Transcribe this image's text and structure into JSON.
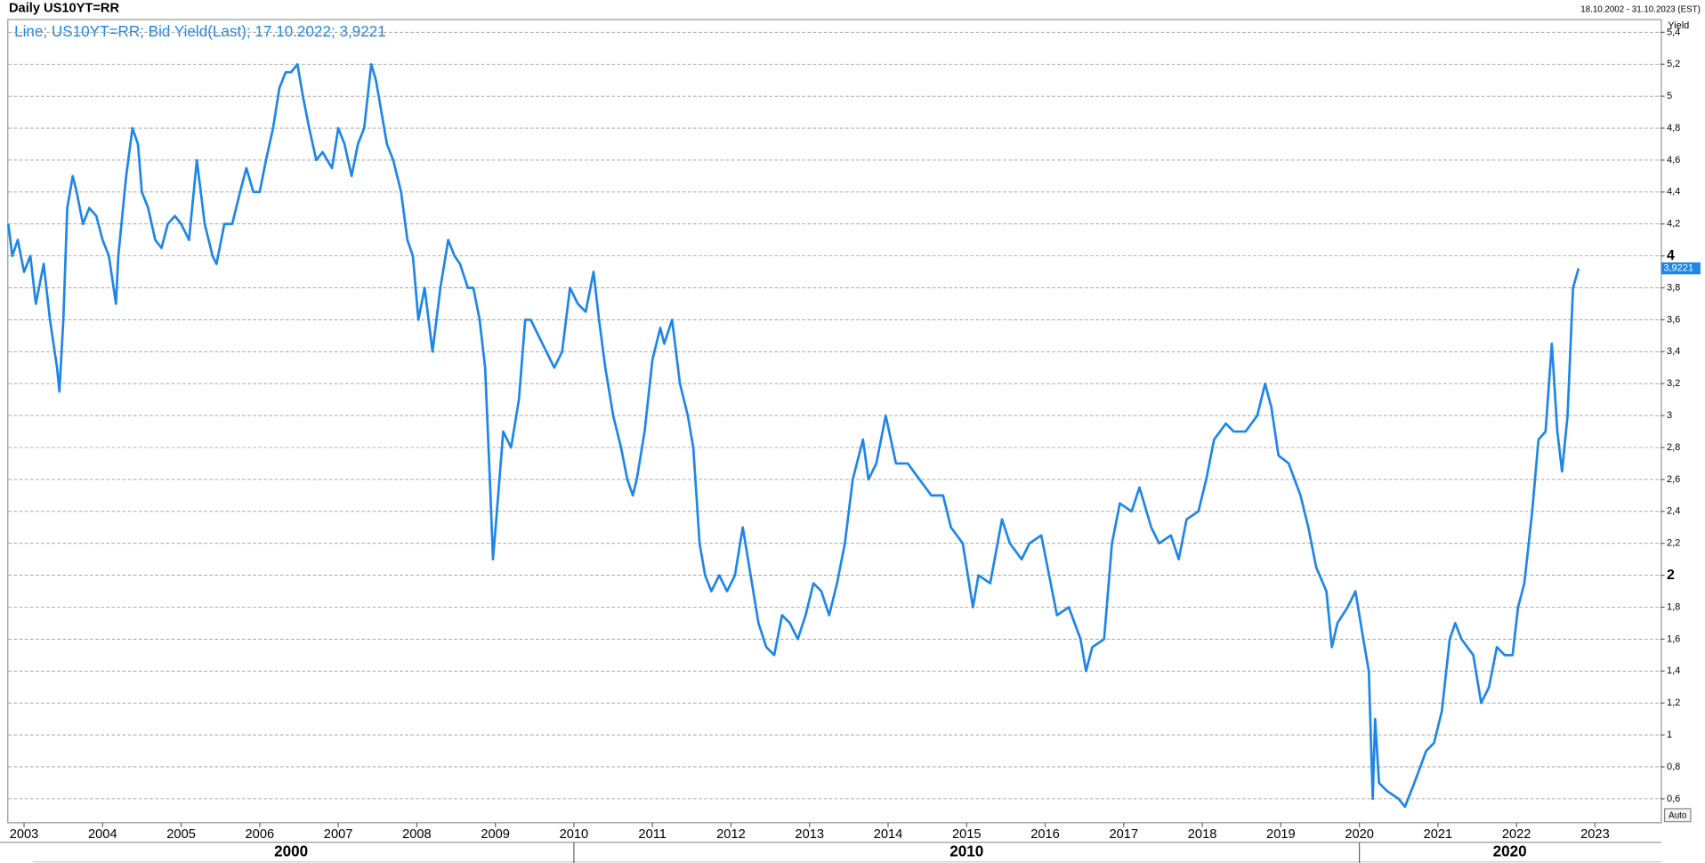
{
  "chart_data": {
    "type": "line",
    "title": "Daily US10YT=RR",
    "date_range": "18.10.2002 - 31.10.2023 (EST)",
    "y_label": "Yield",
    "auto_button": "Auto",
    "x": [
      2002.8,
      2002.85,
      2002.92,
      2003.0,
      2003.08,
      2003.15,
      2003.25,
      2003.33,
      2003.42,
      2003.45,
      2003.5,
      2003.55,
      2003.62,
      2003.67,
      2003.75,
      2003.83,
      2003.92,
      2004.0,
      2004.08,
      2004.17,
      2004.2,
      2004.3,
      2004.38,
      2004.45,
      2004.5,
      2004.58,
      2004.67,
      2004.75,
      2004.83,
      2004.92,
      2005.0,
      2005.1,
      2005.2,
      2005.3,
      2005.4,
      2005.45,
      2005.55,
      2005.65,
      2005.75,
      2005.83,
      2005.92,
      2006.0,
      2006.08,
      2006.17,
      2006.25,
      2006.33,
      2006.4,
      2006.48,
      2006.55,
      2006.63,
      2006.72,
      2006.8,
      2006.92,
      2007.0,
      2007.08,
      2007.17,
      2007.25,
      2007.33,
      2007.42,
      2007.48,
      2007.55,
      2007.62,
      2007.7,
      2007.8,
      2007.88,
      2007.95,
      2008.02,
      2008.1,
      2008.2,
      2008.3,
      2008.4,
      2008.48,
      2008.55,
      2008.65,
      2008.72,
      2008.8,
      2008.87,
      2008.93,
      2008.97,
      2009.02,
      2009.1,
      2009.2,
      2009.3,
      2009.38,
      2009.45,
      2009.55,
      2009.65,
      2009.75,
      2009.85,
      2009.95,
      2010.05,
      2010.15,
      2010.25,
      2010.32,
      2010.4,
      2010.5,
      2010.6,
      2010.68,
      2010.75,
      2010.8,
      2010.9,
      2011.0,
      2011.1,
      2011.15,
      2011.25,
      2011.35,
      2011.45,
      2011.52,
      2011.6,
      2011.67,
      2011.75,
      2011.85,
      2011.95,
      2012.05,
      2012.15,
      2012.25,
      2012.35,
      2012.45,
      2012.55,
      2012.65,
      2012.75,
      2012.85,
      2012.95,
      2013.05,
      2013.15,
      2013.25,
      2013.35,
      2013.45,
      2013.55,
      2013.68,
      2013.75,
      2013.85,
      2013.97,
      2014.1,
      2014.25,
      2014.4,
      2014.55,
      2014.7,
      2014.8,
      2014.95,
      2015.08,
      2015.15,
      2015.3,
      2015.45,
      2015.55,
      2015.7,
      2015.8,
      2015.95,
      2016.05,
      2016.15,
      2016.3,
      2016.45,
      2016.52,
      2016.6,
      2016.75,
      2016.85,
      2016.95,
      2017.1,
      2017.2,
      2017.35,
      2017.45,
      2017.6,
      2017.7,
      2017.8,
      2017.95,
      2018.05,
      2018.15,
      2018.3,
      2018.4,
      2018.55,
      2018.7,
      2018.8,
      2018.88,
      2018.97,
      2019.1,
      2019.25,
      2019.35,
      2019.45,
      2019.58,
      2019.65,
      2019.72,
      2019.85,
      2019.95,
      2020.05,
      2020.12,
      2020.17,
      2020.2,
      2020.25,
      2020.35,
      2020.5,
      2020.58,
      2020.7,
      2020.85,
      2020.95,
      2021.05,
      2021.15,
      2021.22,
      2021.3,
      2021.45,
      2021.55,
      2021.65,
      2021.75,
      2021.85,
      2021.95,
      2022.02,
      2022.1,
      2022.2,
      2022.28,
      2022.37,
      2022.45,
      2022.52,
      2022.58,
      2022.65,
      2022.72,
      2022.79
    ],
    "series": [
      {
        "name": "Line; US10YT=RR; Bid Yield(Last); 17.10.2022; 3,9221",
        "color": "#1e86e8",
        "values": [
          4.2,
          4.0,
          4.1,
          3.9,
          4.0,
          3.7,
          3.95,
          3.6,
          3.3,
          3.15,
          3.6,
          4.3,
          4.5,
          4.4,
          4.2,
          4.3,
          4.25,
          4.1,
          4.0,
          3.7,
          4.0,
          4.5,
          4.8,
          4.7,
          4.4,
          4.3,
          4.1,
          4.05,
          4.2,
          4.25,
          4.2,
          4.1,
          4.6,
          4.2,
          4.0,
          3.95,
          4.2,
          4.2,
          4.4,
          4.55,
          4.4,
          4.4,
          4.6,
          4.8,
          5.05,
          5.15,
          5.15,
          5.2,
          5.0,
          4.8,
          4.6,
          4.65,
          4.55,
          4.8,
          4.7,
          4.5,
          4.7,
          4.8,
          5.2,
          5.1,
          4.9,
          4.7,
          4.6,
          4.4,
          4.1,
          4.0,
          3.6,
          3.8,
          3.4,
          3.8,
          4.1,
          4.0,
          3.95,
          3.8,
          3.8,
          3.6,
          3.3,
          2.6,
          2.1,
          2.4,
          2.9,
          2.8,
          3.1,
          3.6,
          3.6,
          3.5,
          3.4,
          3.3,
          3.4,
          3.8,
          3.7,
          3.65,
          3.9,
          3.6,
          3.3,
          3.0,
          2.8,
          2.6,
          2.5,
          2.6,
          2.9,
          3.35,
          3.55,
          3.45,
          3.6,
          3.2,
          3.0,
          2.8,
          2.2,
          2.0,
          1.9,
          2.0,
          1.9,
          2.0,
          2.3,
          2.0,
          1.7,
          1.55,
          1.5,
          1.75,
          1.7,
          1.6,
          1.75,
          1.95,
          1.9,
          1.75,
          1.95,
          2.2,
          2.6,
          2.85,
          2.6,
          2.7,
          3.0,
          2.7,
          2.7,
          2.6,
          2.5,
          2.5,
          2.3,
          2.2,
          1.8,
          2.0,
          1.95,
          2.35,
          2.2,
          2.1,
          2.2,
          2.25,
          2.0,
          1.75,
          1.8,
          1.6,
          1.4,
          1.55,
          1.6,
          2.2,
          2.45,
          2.4,
          2.55,
          2.3,
          2.2,
          2.25,
          2.1,
          2.35,
          2.4,
          2.6,
          2.85,
          2.95,
          2.9,
          2.9,
          3.0,
          3.2,
          3.05,
          2.75,
          2.7,
          2.5,
          2.3,
          2.05,
          1.9,
          1.55,
          1.7,
          1.8,
          1.9,
          1.6,
          1.4,
          0.6,
          1.1,
          0.7,
          0.65,
          0.6,
          0.55,
          0.7,
          0.9,
          0.95,
          1.15,
          1.6,
          1.7,
          1.6,
          1.5,
          1.2,
          1.3,
          1.55,
          1.5,
          1.5,
          1.8,
          1.95,
          2.4,
          2.85,
          2.9,
          3.45,
          2.9,
          2.65,
          3.0,
          3.8,
          3.9221
        ]
      }
    ],
    "last_value": {
      "value": 3.9221,
      "label": "3,9221"
    },
    "xlim": [
      2002.8,
      2023.83
    ],
    "xticks": [
      2003,
      2004,
      2005,
      2006,
      2007,
      2008,
      2009,
      2010,
      2011,
      2012,
      2013,
      2014,
      2015,
      2016,
      2017,
      2018,
      2019,
      2020,
      2021,
      2022,
      2023
    ],
    "decades": [
      2000,
      2010,
      2020
    ],
    "ylim": [
      0.45,
      5.48
    ],
    "yticks": [
      {
        "value": 0.6,
        "label": "0,6"
      },
      {
        "value": 0.8,
        "label": "0,8"
      },
      1,
      {
        "value": 1.2,
        "label": "1,2"
      },
      {
        "value": 1.4,
        "label": "1,4"
      },
      {
        "value": 1.6,
        "label": "1,6"
      },
      {
        "value": 1.8,
        "label": "1,8"
      },
      2,
      {
        "value": 2.2,
        "label": "2,2"
      },
      {
        "value": 2.4,
        "label": "2,4"
      },
      {
        "value": 2.6,
        "label": "2,6"
      },
      {
        "value": 2.8,
        "label": "2,8"
      },
      3,
      {
        "value": 3.2,
        "label": "3,2"
      },
      {
        "value": 3.4,
        "label": "3,4"
      },
      {
        "value": 3.6,
        "label": "3,6"
      },
      {
        "value": 3.8,
        "label": "3,8"
      },
      4,
      {
        "value": 4.2,
        "label": "4,2"
      },
      {
        "value": 4.4,
        "label": "4,4"
      },
      {
        "value": 4.6,
        "label": "4,6"
      },
      {
        "value": 4.8,
        "label": "4,8"
      },
      5,
      {
        "value": 5.2,
        "label": "5,2"
      },
      {
        "value": 5.4,
        "label": "5,4"
      }
    ],
    "major_yticks": [
      2,
      4
    ],
    "grid": true
  }
}
